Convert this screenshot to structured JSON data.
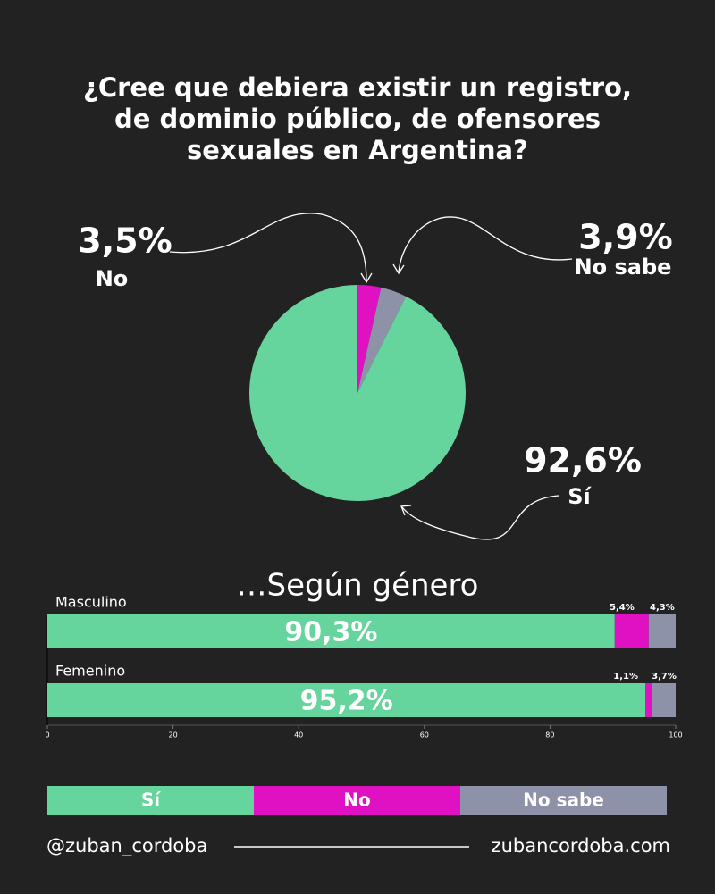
{
  "chart_data": [
    {
      "type": "pie",
      "title": [
        "¿Cree que debiera existir un registro,",
        "de dominio público, de ofensores",
        "sexuales en Argentina?"
      ],
      "categories": [
        "No",
        "No sabe",
        "Sí"
      ],
      "values": [
        3.5,
        3.9,
        92.6
      ],
      "value_labels": [
        "3,5%",
        "3,9%",
        "92,6%"
      ],
      "colors": [
        "#e011c2",
        "#8d92a8",
        "#66d49d"
      ]
    },
    {
      "type": "stacked_barh",
      "title": "…Según género",
      "categories": [
        "Masculino",
        "Femenino"
      ],
      "series": [
        {
          "name": "Sí",
          "color": "#66d49d",
          "values": [
            90.3,
            95.2
          ],
          "value_labels": [
            "90,3%",
            "95,2%"
          ]
        },
        {
          "name": "No",
          "color": "#e011c2",
          "values": [
            5.4,
            1.1
          ],
          "value_labels": [
            "5,4%",
            "1,1%"
          ]
        },
        {
          "name": "No sabe",
          "color": "#8d92a8",
          "values": [
            4.3,
            3.7
          ],
          "value_labels": [
            "4,3%",
            "3,7%"
          ]
        }
      ],
      "xlim": [
        0,
        100
      ],
      "xticks": [
        0,
        20,
        40,
        60,
        80,
        100
      ]
    }
  ],
  "footer": {
    "left": "@zuban_cordoba",
    "right": "zubancordoba.com"
  }
}
